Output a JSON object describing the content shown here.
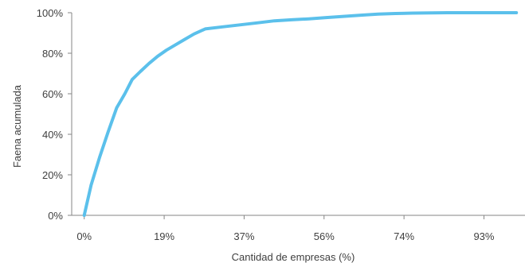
{
  "chart_data": {
    "type": "line",
    "title": "",
    "xlabel": "Cantidad de empresas (%)",
    "ylabel": "Faena acumulada",
    "x_tick_labels": [
      "0%",
      "19%",
      "37%",
      "56%",
      "74%",
      "93%"
    ],
    "x_tick_values": [
      0,
      18.5,
      37,
      55.5,
      74,
      92.5
    ],
    "y_tick_labels": [
      "0%",
      "20%",
      "40%",
      "60%",
      "80%",
      "100%"
    ],
    "y_tick_values": [
      0,
      20,
      40,
      60,
      80,
      100
    ],
    "xlim": [
      -2.9,
      102
    ],
    "ylim": [
      0,
      100
    ],
    "grid": false,
    "legend": "none",
    "line_color": "#5BC0EB",
    "series": [
      {
        "x": [
          0,
          1.6,
          3.6,
          5.5,
          7.5,
          9.4,
          11.1,
          13,
          15,
          17,
          19,
          21,
          23,
          25.4,
          28,
          32,
          36,
          40,
          44,
          48,
          52,
          56,
          60,
          64,
          68,
          72,
          76,
          80,
          84,
          88,
          92,
          96,
          100
        ],
        "y": [
          0,
          15,
          29,
          41,
          53,
          60,
          67,
          71,
          75,
          78.5,
          81.5,
          84,
          86.5,
          89.5,
          92,
          93,
          94,
          95,
          96,
          96.5,
          97,
          97.6,
          98.2,
          98.8,
          99.3,
          99.6,
          99.8,
          99.9,
          100,
          100,
          100,
          100,
          100
        ]
      }
    ]
  }
}
